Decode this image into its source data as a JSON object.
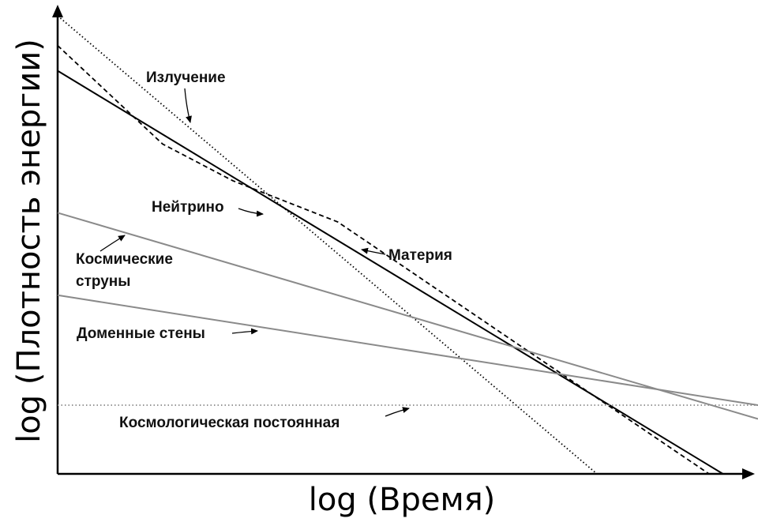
{
  "chart_data": {
    "type": "line",
    "title": "",
    "xlabel": "log (Время)",
    "ylabel": "log (Плотность энергии)",
    "xlim": [
      0,
      100
    ],
    "ylim": [
      0,
      100
    ],
    "grid": false,
    "legend": "none",
    "series": [
      {
        "key": "radiation",
        "name": "Излучение",
        "color": "#000000",
        "dash": "dotted",
        "x": [
          0,
          77
        ],
        "y": [
          100,
          0
        ]
      },
      {
        "key": "neutrinos",
        "name": "Нейтрино",
        "color": "#000000",
        "dash": "dashed",
        "x": [
          0,
          15,
          25,
          40,
          93
        ],
        "y": [
          93.5,
          72,
          64,
          55,
          0
        ]
      },
      {
        "key": "matter",
        "name": "Материя",
        "color": "#000000",
        "dash": "solid",
        "x": [
          0,
          95
        ],
        "y": [
          88,
          0
        ]
      },
      {
        "key": "strings",
        "name": "Космические струны",
        "color": "#8a8a8a",
        "dash": "solid",
        "x": [
          0,
          100
        ],
        "y": [
          57,
          12
        ]
      },
      {
        "key": "walls",
        "name": "Доменные стены",
        "color": "#8a8a8a",
        "dash": "solid",
        "x": [
          0,
          100
        ],
        "y": [
          39,
          15
        ]
      },
      {
        "key": "lambda",
        "name": "Космологическая постоянная",
        "color": "#8a8a8a",
        "dash": "dotted",
        "x": [
          0,
          100
        ],
        "y": [
          15,
          15
        ]
      }
    ]
  }
}
